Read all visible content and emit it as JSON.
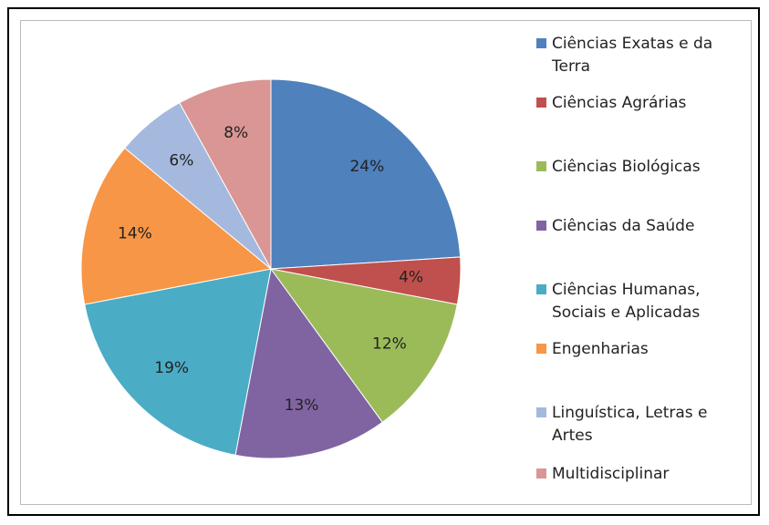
{
  "chart_data": {
    "type": "pie",
    "categories": [
      "Ciências  Exatas e da Terra",
      "Ciências Agrárias",
      "Ciências Biológicas",
      "Ciências da Saúde",
      "Ciências Humanas, Sociais e Aplicadas",
      "Engenharias",
      "Linguística,  Letras e Artes",
      "Multidisciplinar"
    ],
    "values": [
      24,
      4,
      12,
      13,
      19,
      14,
      6,
      8
    ],
    "value_labels": [
      "24%",
      "4%",
      "12%",
      "13%",
      "19%",
      "14%",
      "6%",
      "8%"
    ],
    "colors": [
      "#4f81bd",
      "#c0504d",
      "#9bbb59",
      "#8064a2",
      "#4bacc6",
      "#f79646",
      "#a5b9de",
      "#d99694"
    ],
    "legend": "right"
  }
}
